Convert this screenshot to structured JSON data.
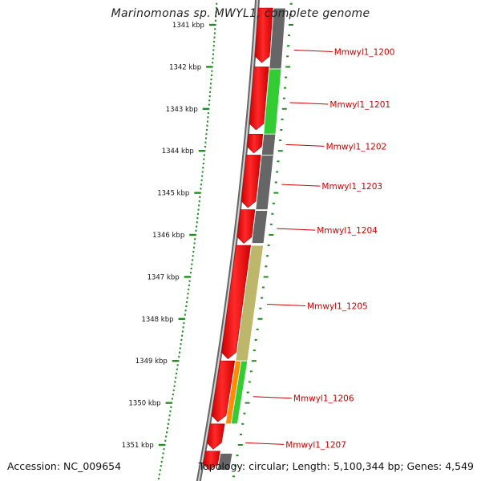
{
  "title": "Marinomonas sp. MWYL1, complete genome",
  "footer": {
    "accession": "Accession: NC_009654",
    "summary": "Topology: circular; Length: 5,100,344 bp; Genes: 4,549"
  },
  "colors": {
    "tick": "#228b22",
    "backbone": "#8a8a8a",
    "gene_label": "#cc0000",
    "forward_gene": "#ff0000",
    "cog_unknown": "#666666",
    "cog_green": "#33cc33",
    "cog_khaki": "#bdb76b",
    "cog_orange": "#ff8c00"
  },
  "diagram": {
    "kbp_labels": [
      {
        "kbp": 1341,
        "text": "1341 kbp"
      },
      {
        "kbp": 1342,
        "text": "1342 kbp"
      },
      {
        "kbp": 1343,
        "text": "1343 kbp"
      },
      {
        "kbp": 1344,
        "text": "1344 kbp"
      },
      {
        "kbp": 1345,
        "text": "1345 kbp"
      },
      {
        "kbp": 1346,
        "text": "1346 kbp"
      },
      {
        "kbp": 1347,
        "text": "1347 kbp"
      },
      {
        "kbp": 1348,
        "text": "1348 kbp"
      },
      {
        "kbp": 1349,
        "text": "1349 kbp"
      },
      {
        "kbp": 1350,
        "text": "1350 kbp"
      },
      {
        "kbp": 1351,
        "text": "1351 kbp"
      }
    ],
    "forward_genes": [
      {
        "start": 1340.6,
        "end": 1341.9
      },
      {
        "start": 1342.0,
        "end": 1343.5
      },
      {
        "start": 1343.6,
        "end": 1344.05
      },
      {
        "start": 1344.1,
        "end": 1345.35
      },
      {
        "start": 1345.4,
        "end": 1346.2
      },
      {
        "start": 1346.25,
        "end": 1348.95
      },
      {
        "start": 1349.0,
        "end": 1350.45
      },
      {
        "start": 1350.5,
        "end": 1351.1
      },
      {
        "start": 1351.15,
        "end": 1351.6
      }
    ],
    "cog_blocks": [
      {
        "start": 1340.6,
        "end": 1342.05,
        "color": "cog_unknown"
      },
      {
        "start": 1342.05,
        "end": 1343.6,
        "color": "cog_green"
      },
      {
        "start": 1343.6,
        "end": 1344.1,
        "color": "cog_unknown"
      },
      {
        "start": 1344.1,
        "end": 1345.4,
        "color": "cog_unknown"
      },
      {
        "start": 1345.42,
        "end": 1346.2,
        "color": "cog_unknown"
      },
      {
        "start": 1346.25,
        "end": 1349.0,
        "color": "cog_khaki"
      },
      {
        "start": 1349.0,
        "end": 1350.5,
        "color": "cog_orange"
      },
      {
        "start": 1349.0,
        "end": 1350.5,
        "color": "cog_green"
      },
      {
        "start": 1351.2,
        "end": 1351.6,
        "color": "cog_unknown"
      }
    ],
    "gene_labels": [
      {
        "name": "Mmwyl1_1200",
        "kbp": 1341.6
      },
      {
        "name": "Mmwyl1_1201",
        "kbp": 1342.85
      },
      {
        "name": "Mmwyl1_1202",
        "kbp": 1343.85
      },
      {
        "name": "Mmwyl1_1203",
        "kbp": 1344.8
      },
      {
        "name": "Mmwyl1_1204",
        "kbp": 1345.85
      },
      {
        "name": "Mmwyl1_1205",
        "kbp": 1347.65
      },
      {
        "name": "Mmwyl1_1206",
        "kbp": 1349.85
      },
      {
        "name": "Mmwyl1_1207",
        "kbp": 1350.95
      }
    ]
  }
}
